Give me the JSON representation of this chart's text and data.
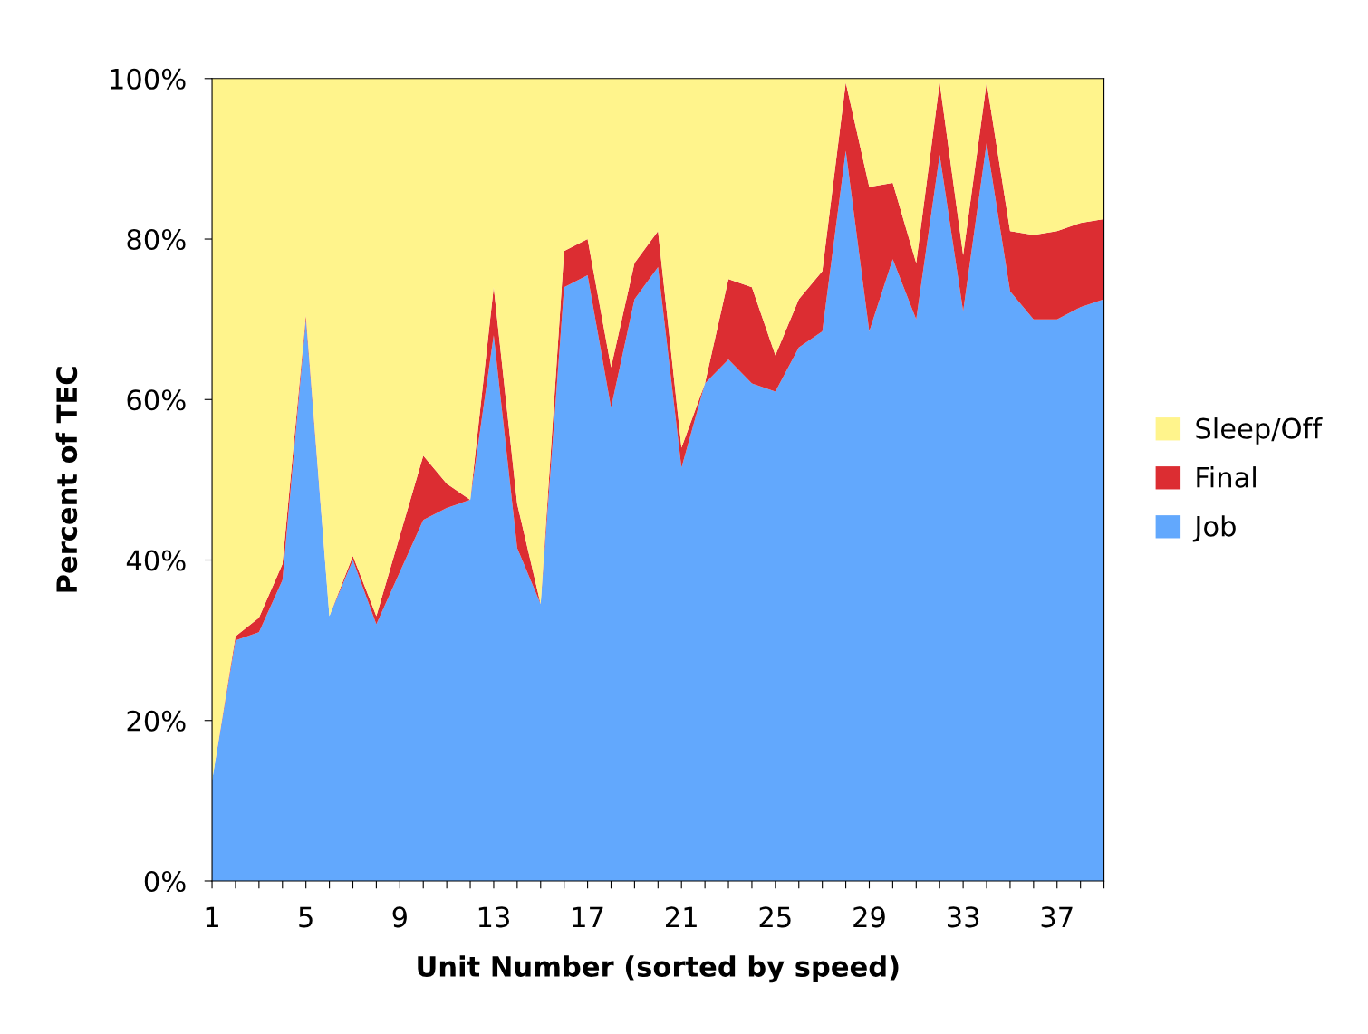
{
  "chart_data": {
    "type": "area",
    "stacked": true,
    "xlabel": "Unit Number (sorted by speed)",
    "ylabel": "Percent of TEC",
    "x": [
      1,
      2,
      3,
      4,
      5,
      6,
      7,
      8,
      9,
      10,
      11,
      12,
      13,
      14,
      15,
      16,
      17,
      18,
      19,
      20,
      21,
      22,
      23,
      24,
      25,
      26,
      27,
      28,
      29,
      30,
      31,
      32,
      33,
      34,
      35,
      36,
      37,
      38,
      39
    ],
    "series": [
      {
        "name": "Job",
        "color": "#62a8fd",
        "values": [
          12.5,
          30,
          31,
          37.5,
          70,
          33,
          40,
          32,
          38.5,
          45,
          46.5,
          47.5,
          68,
          41.5,
          34.5,
          74,
          75.5,
          59,
          72.5,
          76.5,
          51.5,
          62,
          65,
          62,
          61,
          66.5,
          68.5,
          91,
          68.5,
          77.5,
          70,
          90.5,
          71,
          92,
          73.5,
          70,
          70,
          71.5,
          72.5
        ]
      },
      {
        "name": "Final",
        "color": "#dc2d32",
        "values": [
          0,
          0.5,
          1.8,
          2,
          0.5,
          0,
          0.5,
          1,
          4.5,
          8,
          3,
          0,
          6,
          5.5,
          0,
          4.5,
          4.5,
          5,
          4.5,
          4.5,
          2.5,
          0,
          10,
          12,
          4.5,
          6,
          7.5,
          8.5,
          18,
          9.5,
          7,
          9,
          7,
          7.5,
          7.5,
          10.5,
          11,
          10.5,
          10
        ]
      },
      {
        "name": "Sleep/Off",
        "color": "#fff48c",
        "values": [
          87.5,
          69.5,
          67.2,
          60.5,
          29.5,
          67,
          59.5,
          67,
          57,
          47,
          50.5,
          52.5,
          26,
          53,
          65.5,
          21.5,
          20,
          36,
          23,
          19,
          46,
          38,
          25,
          26,
          34.5,
          27.5,
          24,
          0.5,
          13.5,
          13,
          23,
          0.5,
          22,
          0.5,
          19,
          19.5,
          19,
          18,
          17.5
        ]
      }
    ],
    "xlim": [
      1,
      39
    ],
    "xticks": [
      1,
      {
        "value": 2,
        "label": null
      },
      {
        "value": 3,
        "label": null
      },
      {
        "value": 4,
        "label": null
      },
      5,
      {
        "value": 6,
        "label": null
      },
      {
        "value": 7,
        "label": null
      },
      {
        "value": 8,
        "label": null
      },
      9,
      {
        "value": 10,
        "label": null
      },
      {
        "value": 11,
        "label": null
      },
      {
        "value": 12,
        "label": null
      },
      13,
      {
        "value": 14,
        "label": null
      },
      {
        "value": 15,
        "label": null
      },
      {
        "value": 16,
        "label": null
      },
      17,
      {
        "value": 18,
        "label": null
      },
      {
        "value": 19,
        "label": null
      },
      {
        "value": 20,
        "label": null
      },
      21,
      {
        "value": 22,
        "label": null
      },
      {
        "value": 23,
        "label": null
      },
      {
        "value": 24,
        "label": null
      },
      25,
      {
        "value": 26,
        "label": null
      },
      {
        "value": 27,
        "label": null
      },
      {
        "value": 28,
        "label": null
      },
      29,
      {
        "value": 30,
        "label": null
      },
      {
        "value": 31,
        "label": null
      },
      {
        "value": 32,
        "label": null
      },
      33,
      {
        "value": 34,
        "label": null
      },
      {
        "value": 35,
        "label": null
      },
      {
        "value": 36,
        "label": null
      },
      37,
      {
        "value": 38,
        "label": null
      },
      {
        "value": 39,
        "label": null
      }
    ],
    "ylim": [
      0,
      100
    ],
    "yticks": [
      {
        "value": 0,
        "label": "0%"
      },
      {
        "value": 20,
        "label": "20%"
      },
      {
        "value": 40,
        "label": "40%"
      },
      {
        "value": 60,
        "label": "60%"
      },
      {
        "value": 80,
        "label": "80%"
      },
      {
        "value": 100,
        "label": "100%"
      }
    ],
    "grid": false,
    "legend": "right"
  }
}
